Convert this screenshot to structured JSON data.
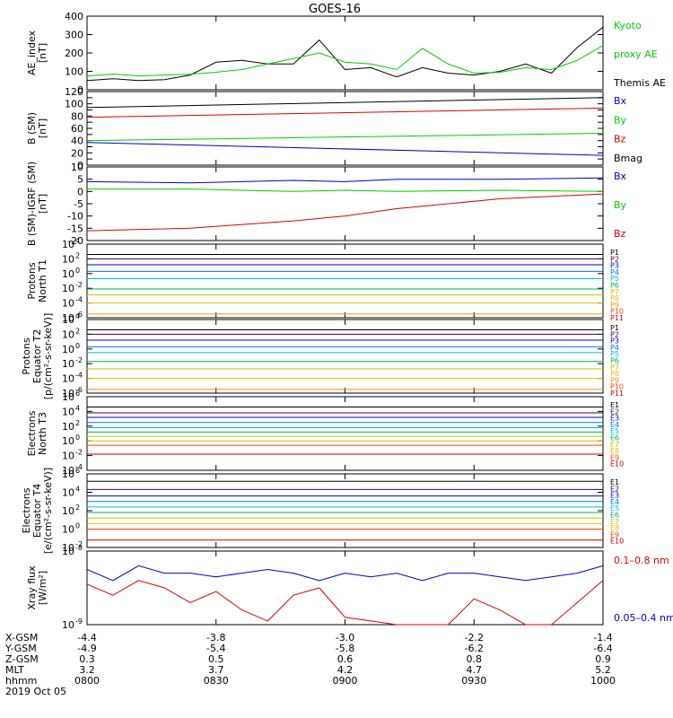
{
  "title": "GOES-16",
  "colors": {
    "black": "#000000",
    "blue": "#0000cc",
    "green": "#00cc00",
    "red": "#dd0000",
    "axis": "#000000"
  },
  "chart_data": [
    {
      "type": "line",
      "id": "ae",
      "ylabel": [
        "AE_index",
        "[nT]"
      ],
      "ylim": [
        0,
        400
      ],
      "yticks": [
        0,
        100,
        200,
        300,
        400
      ],
      "log": false,
      "x": [
        0,
        0.05,
        0.1,
        0.15,
        0.2,
        0.25,
        0.3,
        0.35,
        0.4,
        0.45,
        0.5,
        0.55,
        0.6,
        0.65,
        0.7,
        0.75,
        0.8,
        0.85,
        0.9,
        0.95,
        1.0
      ],
      "series": [
        {
          "name": "Themis AE",
          "color": "black",
          "values": [
            50,
            60,
            50,
            55,
            80,
            150,
            160,
            140,
            140,
            270,
            110,
            120,
            70,
            120,
            90,
            80,
            100,
            140,
            90,
            230,
            340
          ]
        },
        {
          "name": "Kyoto proxy AE",
          "color": "green",
          "values": [
            75,
            85,
            75,
            80,
            85,
            95,
            110,
            140,
            170,
            200,
            150,
            140,
            110,
            225,
            140,
            90,
            95,
            120,
            110,
            160,
            240
          ]
        }
      ],
      "legend": [
        {
          "text": "Kyoto",
          "color": "green"
        },
        {
          "text": "proxy AE",
          "color": "green"
        },
        {
          "text": "Themis AE",
          "color": "black"
        }
      ]
    },
    {
      "type": "line",
      "id": "bsm",
      "ylabel": [
        "B (SM)",
        "[nT]"
      ],
      "ylim": [
        0,
        120
      ],
      "yticks": [
        0,
        10,
        20,
        30,
        40,
        50,
        60,
        70,
        80,
        90,
        100,
        110,
        120
      ],
      "tick_labels": [
        0,
        20,
        40,
        60,
        80,
        100,
        120
      ],
      "log": false,
      "x": [
        0,
        1
      ],
      "series": [
        {
          "name": "Bx",
          "color": "blue",
          "values": [
            37,
            16
          ]
        },
        {
          "name": "By",
          "color": "green",
          "values": [
            40,
            52
          ]
        },
        {
          "name": "Bz",
          "color": "red",
          "values": [
            78,
            93
          ]
        },
        {
          "name": "Bmag",
          "color": "black",
          "values": [
            94,
            110
          ]
        }
      ],
      "legend": [
        {
          "text": "Bx",
          "color": "blue"
        },
        {
          "text": "By",
          "color": "green"
        },
        {
          "text": "Bz",
          "color": "red"
        },
        {
          "text": "Bmag",
          "color": "black"
        }
      ]
    },
    {
      "type": "line",
      "id": "bigrf",
      "ylabel": [
        "B (SM)-IGRF (SM)",
        "[nT]"
      ],
      "ylim": [
        -20,
        10
      ],
      "yticks": [
        -20,
        -15,
        -10,
        -5,
        0,
        5,
        10
      ],
      "log": false,
      "x": [
        0,
        0.2,
        0.4,
        0.5,
        0.6,
        0.8,
        1.0
      ],
      "series": [
        {
          "name": "Bx",
          "color": "blue",
          "values": [
            4,
            3.5,
            4.5,
            4,
            5,
            5,
            5.5
          ]
        },
        {
          "name": "By",
          "color": "green",
          "values": [
            1,
            1,
            0,
            0.5,
            0,
            0.5,
            0
          ]
        },
        {
          "name": "Bz",
          "color": "red",
          "values": [
            -16,
            -15,
            -12,
            -10,
            -7,
            -3,
            -1
          ]
        }
      ],
      "legend": [
        {
          "text": "Bx",
          "color": "blue"
        },
        {
          "text": "By",
          "color": "green"
        },
        {
          "text": "Bz",
          "color": "red"
        }
      ]
    },
    {
      "type": "line",
      "id": "pn",
      "ylabel": [
        "Protons",
        "North T1"
      ],
      "ylim": [
        -6,
        4
      ],
      "yticks": [
        -6,
        -4,
        -2,
        0,
        2,
        4
      ],
      "log": true,
      "channels": [
        {
          "name": "P1",
          "color": "#000000",
          "level": 2.6
        },
        {
          "name": "P2",
          "color": "#3c0050",
          "level": 2.0
        },
        {
          "name": "P3",
          "color": "#0000cc",
          "level": 1.2
        },
        {
          "name": "P4",
          "color": "#0070ff",
          "level": 0.3
        },
        {
          "name": "P5",
          "color": "#00bcd4",
          "level": -0.7
        },
        {
          "name": "P6",
          "color": "#00b050",
          "level": -2.1
        },
        {
          "name": "P7",
          "color": "#b8c800",
          "level": -2.9
        },
        {
          "name": "P8",
          "color": "#e0c000",
          "level": -4.0
        },
        {
          "name": "P9",
          "color": "#ff8c00",
          "level": -5.5
        },
        {
          "name": "P10",
          "color": "#ff4000",
          "level": -6.5
        },
        {
          "name": "P11",
          "color": "#c00000",
          "level": -7.0
        }
      ]
    },
    {
      "type": "line",
      "id": "pe",
      "ylabel": [
        "Protons",
        "Equator T2",
        "[p/(cm²-s-sr-keV)]"
      ],
      "ylim": [
        -6,
        4
      ],
      "yticks": [
        -6,
        -4,
        -2,
        0,
        2,
        4
      ],
      "log": true,
      "channels": [
        {
          "name": "P1",
          "color": "#000000",
          "level": 2.6
        },
        {
          "name": "P2",
          "color": "#3c0050",
          "level": 2.0
        },
        {
          "name": "P3",
          "color": "#0000cc",
          "level": 1.2
        },
        {
          "name": "P4",
          "color": "#0070ff",
          "level": 0.3
        },
        {
          "name": "P5",
          "color": "#00bcd4",
          "level": -0.5
        },
        {
          "name": "P6",
          "color": "#00b050",
          "level": -1.7
        },
        {
          "name": "P7",
          "color": "#b8c800",
          "level": -2.7
        },
        {
          "name": "P8",
          "color": "#e0c000",
          "level": -4.0
        },
        {
          "name": "P9",
          "color": "#ff8c00",
          "level": -5.5
        },
        {
          "name": "P10",
          "color": "#ff4000",
          "level": -6.5
        },
        {
          "name": "P11",
          "color": "#c00000",
          "level": -7.0
        }
      ]
    },
    {
      "type": "line",
      "id": "en",
      "ylabel": [
        "Electrons",
        "North T3"
      ],
      "ylim": [
        -4,
        6
      ],
      "yticks": [
        -4,
        -2,
        0,
        2,
        4,
        6
      ],
      "log": true,
      "channels": [
        {
          "name": "E1",
          "color": "#000000",
          "level": 4.6
        },
        {
          "name": "E2",
          "color": "#3c0050",
          "level": 3.8
        },
        {
          "name": "E3",
          "color": "#0000cc",
          "level": 3.2
        },
        {
          "name": "E4",
          "color": "#0070ff",
          "level": 2.5
        },
        {
          "name": "E5",
          "color": "#00bcd4",
          "level": 1.8
        },
        {
          "name": "E6",
          "color": "#00b050",
          "level": 1.2
        },
        {
          "name": "E7",
          "color": "#b8c800",
          "level": 0.6
        },
        {
          "name": "E8",
          "color": "#e0c000",
          "level": 0.0
        },
        {
          "name": "E9",
          "color": "#ff4000",
          "level": -0.6
        },
        {
          "name": "E10",
          "color": "#c00000",
          "level": -1.8
        }
      ]
    },
    {
      "type": "line",
      "id": "ee",
      "ylabel": [
        "Electrons",
        "Equator T4",
        "[e/(cm²-s-sr-keV)]"
      ],
      "ylim": [
        -2,
        6
      ],
      "yticks": [
        -2,
        0,
        2,
        4,
        6
      ],
      "log": true,
      "channels": [
        {
          "name": "E1",
          "color": "#000000",
          "level": 5.2
        },
        {
          "name": "E2",
          "color": "#3c0050",
          "level": 4.3
        },
        {
          "name": "E3",
          "color": "#0000cc",
          "level": 3.6
        },
        {
          "name": "E4",
          "color": "#0070ff",
          "level": 3.0
        },
        {
          "name": "E5",
          "color": "#00bcd4",
          "level": 2.4
        },
        {
          "name": "E6",
          "color": "#00b050",
          "level": 1.8
        },
        {
          "name": "E7",
          "color": "#b8c800",
          "level": 1.2
        },
        {
          "name": "E8",
          "color": "#e0c000",
          "level": 0.6
        },
        {
          "name": "E9",
          "color": "#ff4000",
          "level": 0.0
        },
        {
          "name": "E10",
          "color": "#c00000",
          "level": -1.2
        }
      ]
    },
    {
      "type": "line",
      "id": "xray",
      "ylabel": [
        "Xray flux",
        "[W/m²]"
      ],
      "ylim": [
        -9,
        -8
      ],
      "yticks": [
        -9,
        -8
      ],
      "log": true,
      "series": [
        {
          "name": "0.1–0.8 nm",
          "color": "red",
          "values": [
            -8.45,
            -8.6,
            -8.4,
            -8.5,
            -8.7,
            -8.55,
            -8.8,
            -8.95,
            -8.6,
            -8.5,
            -8.9,
            -8.95,
            -9,
            -9,
            -9,
            -8.65,
            -8.8,
            -9,
            -9,
            -8.7,
            -8.4
          ]
        },
        {
          "name": "0.05–0.4 nm",
          "color": "blue",
          "values": [
            -8.25,
            -8.4,
            -8.2,
            -8.3,
            -8.3,
            -8.35,
            -8.3,
            -8.25,
            -8.3,
            -8.4,
            -8.3,
            -8.35,
            -8.3,
            -8.4,
            -8.3,
            -8.3,
            -8.35,
            -8.4,
            -8.35,
            -8.3,
            -8.2
          ]
        }
      ],
      "x": [
        0,
        0.05,
        0.1,
        0.15,
        0.2,
        0.25,
        0.3,
        0.35,
        0.4,
        0.45,
        0.5,
        0.55,
        0.6,
        0.65,
        0.7,
        0.75,
        0.8,
        0.85,
        0.9,
        0.95,
        1.0
      ],
      "legend": [
        {
          "text": "0.1–0.8 nm",
          "color": "red"
        },
        {
          "text": "0.05–0.4 nm",
          "color": "blue"
        }
      ]
    }
  ],
  "x_axis": {
    "rows": [
      {
        "label": "X-GSM",
        "values": [
          "-4.4",
          "-3.8",
          "-3.0",
          "-2.2",
          "-1.4"
        ]
      },
      {
        "label": "Y-GSM",
        "values": [
          "-4.9",
          "-5.4",
          "-5.8",
          "-6.2",
          "-6.4"
        ]
      },
      {
        "label": "Z-GSM",
        "values": [
          "0.3",
          "0.5",
          "0.6",
          "0.8",
          "0.9"
        ]
      },
      {
        "label": "MLT",
        "values": [
          "3.2",
          "3.7",
          "4.2",
          "4.7",
          "5.2"
        ]
      },
      {
        "label": "hhmm",
        "values": [
          "0800",
          "0830",
          "0900",
          "0930",
          "1000"
        ]
      }
    ],
    "date": "2019 Oct 05"
  }
}
